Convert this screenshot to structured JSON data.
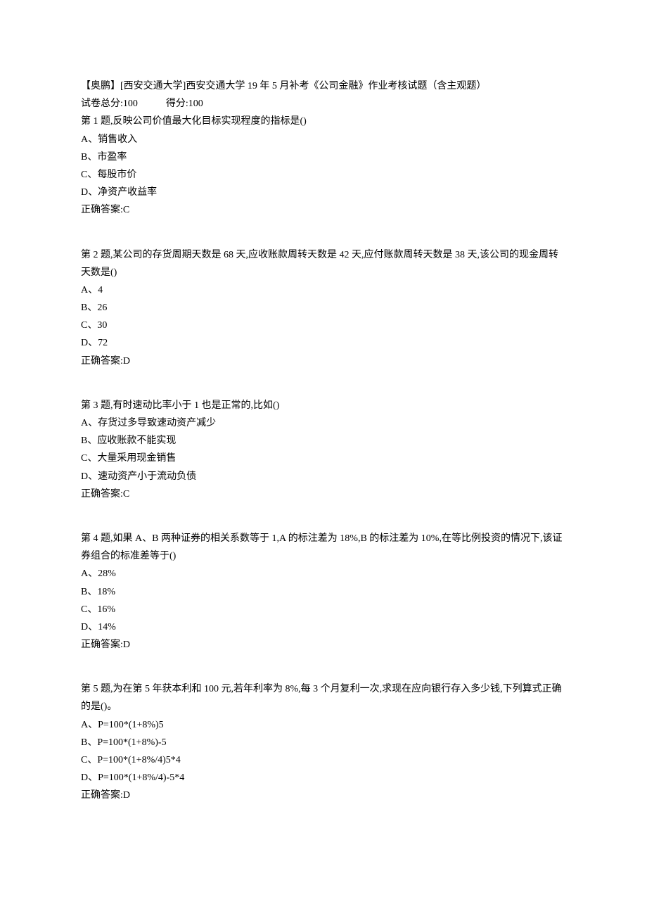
{
  "header": {
    "title": "【奥鹏】[西安交通大学]西安交通大学 19 年 5 月补考《公司金融》作业考核试题（含主观题）",
    "score_total_label": "试卷总分:100",
    "score_got_label": "得分:100"
  },
  "questions": [
    {
      "stem": "第 1 题,反映公司价值最大化目标实现程度的指标是()",
      "options": [
        "A、销售收入",
        "B、市盈率",
        "C、每股市价",
        "D、净资产收益率"
      ],
      "answer": "正确答案:C"
    },
    {
      "stem": "第 2 题,某公司的存货周期天数是 68 天,应收账款周转天数是 42 天,应付账款周转天数是 38 天,该公司的现金周转天数是()",
      "options": [
        "A、4",
        "B、26",
        "C、30",
        "D、72"
      ],
      "answer": "正确答案:D"
    },
    {
      "stem": "第 3 题,有时速动比率小于 1 也是正常的,比如()",
      "options": [
        "A、存货过多导致速动资产减少",
        "B、应收账款不能实现",
        "C、大量采用现金销售",
        "D、速动资产小于流动负债"
      ],
      "answer": "正确答案:C"
    },
    {
      "stem": "第 4 题,如果 A、B 两种证券的相关系数等于 1,A 的标注差为 18%,B 的标注差为 10%,在等比例投资的情况下,该证券组合的标准差等于()",
      "options": [
        "A、28%",
        "B、18%",
        "C、16%",
        "D、14%"
      ],
      "answer": "正确答案:D"
    },
    {
      "stem": "第 5 题,为在第 5 年获本利和 100 元,若年利率为 8%,每 3 个月复利一次,求现在应向银行存入多少钱,下列算式正确的是()。",
      "options": [
        "A、P=100*(1+8%)5",
        "B、P=100*(1+8%)-5",
        "C、P=100*(1+8%/4)5*4",
        "D、P=100*(1+8%/4)-5*4"
      ],
      "answer": "正确答案:D"
    }
  ]
}
